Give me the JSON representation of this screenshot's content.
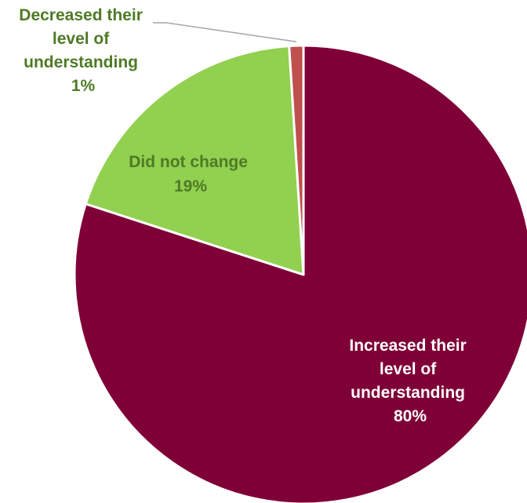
{
  "chart_data": {
    "type": "pie",
    "title": "",
    "slices": [
      {
        "label_lines": [
          "Increased their",
          "level of",
          "understanding"
        ],
        "value": 80,
        "value_label": "80%",
        "color": "#7f0037",
        "label_color": "#ffffff"
      },
      {
        "label_lines": [
          "Did not change"
        ],
        "value": 19,
        "value_label": "19%",
        "color": "#92d050",
        "label_color": "#4e7a25"
      },
      {
        "label_lines": [
          "Decreased their",
          "level of",
          "understanding"
        ],
        "value": 1,
        "value_label": "1%",
        "color": "#c0504d",
        "label_color": "#4e7a25"
      }
    ],
    "start_angle": "12 o'clock",
    "direction": "clockwise",
    "legend": "none",
    "slice_border_color": "#ffffff",
    "leader_line_color": "#a6a6a6"
  }
}
